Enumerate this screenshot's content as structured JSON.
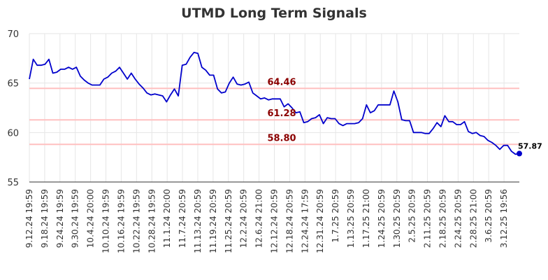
{
  "chart_data": {
    "type": "line",
    "title": "UTMD Long Term Signals",
    "xlabel": "",
    "ylabel": "",
    "ylim": [
      55,
      70
    ],
    "yticks": [
      "55",
      "60",
      "65",
      "70"
    ],
    "grid": true,
    "x_tick_labels": [
      "9.12.24 19:59",
      "9.18.24 19:59",
      "9.24.24 19:59",
      "9.30.24 19:59",
      "10.4.24 20:00",
      "10.10.24 19:59",
      "10.16.24 19:59",
      "10.22.24 19:59",
      "10.28.24 19:59",
      "11.1.24 20:00",
      "11.7.24 20:59",
      "11.13.24 20:59",
      "11.19.24 20:59",
      "11.25.24 20:59",
      "12.2.24 20:59",
      "12.6.24 21:00",
      "12.12.24 20:59",
      "12.18.24 20:59",
      "12.24.24 17:59",
      "12.31.24 20:59",
      "1.7.25 20:59",
      "1.13.25 20:59",
      "1.17.25 21:00",
      "1.24.25 20:59",
      "1.30.25 20:59",
      "2.5.25 20:59",
      "2.11.25 20:59",
      "2.18.25 20:59",
      "2.24.25 20:59",
      "2.28.25 21:00",
      "3.6.25 20:59",
      "3.12.25 19:56"
    ],
    "series": [
      {
        "color": "#0000cc",
        "values": [
          65.4,
          67.4,
          66.8,
          66.8,
          66.9,
          67.4,
          66.0,
          66.1,
          66.4,
          66.4,
          66.6,
          66.4,
          66.6,
          65.7,
          65.3,
          65.0,
          64.8,
          64.8,
          64.8,
          65.4,
          65.6,
          66.0,
          66.2,
          66.6,
          66.0,
          65.4,
          66.0,
          65.4,
          64.9,
          64.5,
          64.0,
          63.8,
          63.9,
          63.8,
          63.7,
          63.1,
          63.8,
          64.4,
          63.7,
          66.8,
          66.9,
          67.6,
          68.1,
          68.0,
          66.6,
          66.3,
          65.8,
          65.8,
          64.4,
          64.0,
          64.1,
          65.0,
          65.6,
          64.9,
          64.8,
          64.9,
          65.1,
          64.0,
          63.7,
          63.4,
          63.5,
          63.3,
          63.4,
          63.4,
          63.4,
          62.6,
          62.9,
          62.5,
          62.0,
          62.1,
          61.0,
          61.1,
          61.4,
          61.5,
          61.8,
          60.9,
          61.5,
          61.4,
          61.4,
          60.9,
          60.7,
          60.9,
          60.9,
          60.9,
          61.0,
          61.4,
          62.8,
          62.0,
          62.2,
          62.8,
          62.8,
          62.8,
          62.8,
          64.2,
          63.1,
          61.3,
          61.2,
          61.2,
          60.0,
          60.0,
          60.0,
          59.9,
          59.9,
          60.4,
          61.0,
          60.6,
          61.7,
          61.1,
          61.1,
          60.8,
          60.8,
          61.1,
          60.1,
          59.9,
          60.0,
          59.7,
          59.6,
          59.2,
          59.0,
          58.7,
          58.3,
          58.7,
          58.7,
          58.1,
          57.8,
          57.87
        ]
      }
    ],
    "signal_lines": [
      {
        "label": "64.46",
        "value": 64.46
      },
      {
        "label": "61.28",
        "value": 61.28
      },
      {
        "label": "58.80",
        "value": 58.8
      }
    ],
    "last_value_label": "57.87",
    "colors": {
      "line": "#0000cc",
      "signal_line": "#ffc0c0",
      "signal_label": "#8b0000",
      "grid": "#e6e6e6",
      "last_point": "#0000cc"
    }
  }
}
